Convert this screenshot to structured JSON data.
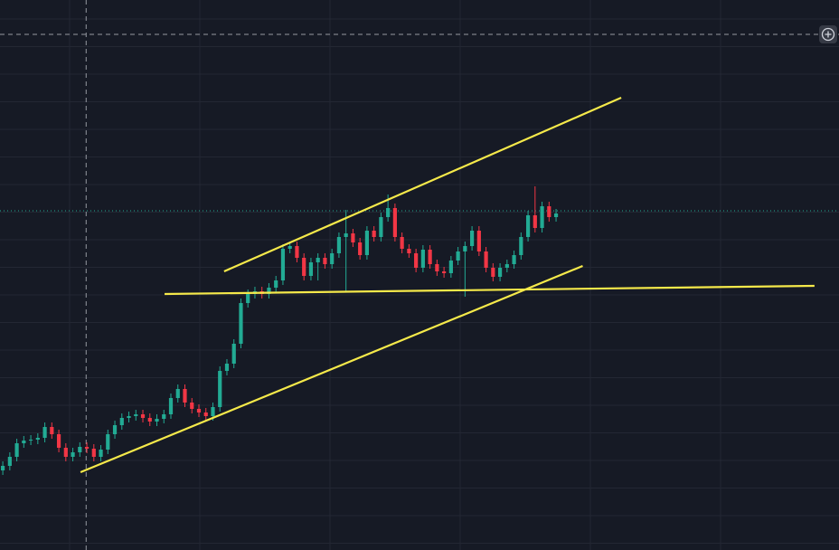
{
  "chart_data": {
    "type": "candlestick",
    "title": "",
    "xlabel": "",
    "ylabel": "",
    "xlim": [
      -0.4,
      119.4
    ],
    "ylim": [
      0,
      608
    ],
    "grid": true,
    "open": [
      88,
      93,
      103,
      118,
      121,
      122,
      124,
      136,
      128,
      113,
      103,
      108,
      114,
      112,
      103,
      111,
      128,
      138,
      146,
      148,
      150,
      146,
      142,
      145,
      150,
      168,
      178,
      163,
      156,
      152,
      148,
      158,
      198,
      206,
      228,
      273,
      283,
      286,
      283,
      290,
      298,
      333,
      336,
      323,
      303,
      318,
      323,
      316,
      328,
      346,
      350,
      340,
      326,
      353,
      346,
      368,
      378,
      346,
      333,
      328,
      312,
      332,
      316,
      308,
      306,
      320,
      330,
      336,
      353,
      330,
      312,
      302,
      312,
      316,
      326,
      346,
      370,
      356,
      380,
      368
    ],
    "high": [
      98,
      108,
      123,
      126,
      127,
      129,
      141,
      141,
      133,
      118,
      113,
      119,
      119,
      117,
      116,
      133,
      143,
      151,
      153,
      155,
      155,
      151,
      150,
      155,
      173,
      183,
      183,
      168,
      161,
      157,
      163,
      203,
      211,
      233,
      278,
      288,
      291,
      291,
      295,
      303,
      338,
      341,
      341,
      328,
      323,
      328,
      328,
      333,
      351,
      376,
      355,
      345,
      358,
      358,
      373,
      393,
      383,
      351,
      338,
      333,
      337,
      337,
      321,
      313,
      325,
      335,
      341,
      358,
      358,
      335,
      317,
      317,
      321,
      331,
      351,
      375,
      402,
      385,
      385,
      377
    ],
    "low": [
      83,
      88,
      98,
      113,
      116,
      117,
      119,
      123,
      108,
      98,
      98,
      103,
      107,
      98,
      98,
      106,
      123,
      133,
      141,
      143,
      141,
      137,
      137,
      140,
      145,
      163,
      158,
      151,
      147,
      143,
      143,
      153,
      193,
      201,
      223,
      268,
      278,
      278,
      278,
      285,
      293,
      328,
      318,
      298,
      298,
      298,
      311,
      311,
      323,
      286,
      335,
      321,
      321,
      341,
      341,
      363,
      341,
      328,
      323,
      307,
      307,
      311,
      303,
      301,
      301,
      315,
      280,
      331,
      325,
      307,
      297,
      297,
      307,
      311,
      321,
      341,
      351,
      351,
      363,
      363
    ],
    "close": [
      93,
      103,
      118,
      121,
      122,
      124,
      136,
      128,
      113,
      103,
      108,
      114,
      112,
      103,
      111,
      128,
      138,
      146,
      148,
      150,
      146,
      142,
      145,
      150,
      168,
      178,
      163,
      156,
      152,
      148,
      158,
      198,
      206,
      228,
      273,
      283,
      286,
      283,
      290,
      298,
      333,
      336,
      323,
      303,
      318,
      323,
      316,
      328,
      346,
      350,
      340,
      326,
      353,
      346,
      368,
      378,
      346,
      333,
      328,
      312,
      332,
      316,
      308,
      306,
      320,
      330,
      336,
      353,
      330,
      312,
      302,
      312,
      316,
      326,
      346,
      370,
      356,
      380,
      368,
      372
    ],
    "trendlines": [
      {
        "from": [
          31.6,
          308
        ],
        "to": [
          88.3,
          500
        ]
      },
      {
        "from": [
          11.1,
          86
        ],
        "to": [
          82.8,
          314
        ]
      },
      {
        "from": [
          23.1,
          283
        ],
        "to": [
          115.9,
          292
        ]
      }
    ],
    "crosshair": {
      "index": 11.9,
      "value": 570
    },
    "last_price": 375,
    "colors": {
      "background": "#161a25",
      "up": "#22ab94",
      "down": "#f23645",
      "trendline": "#f5e94a",
      "grid": "#232733",
      "crosshair": "#9598a1",
      "last_price_line": "#22ab94"
    }
  },
  "toolbar": {
    "icon": "plus-circle-icon"
  }
}
